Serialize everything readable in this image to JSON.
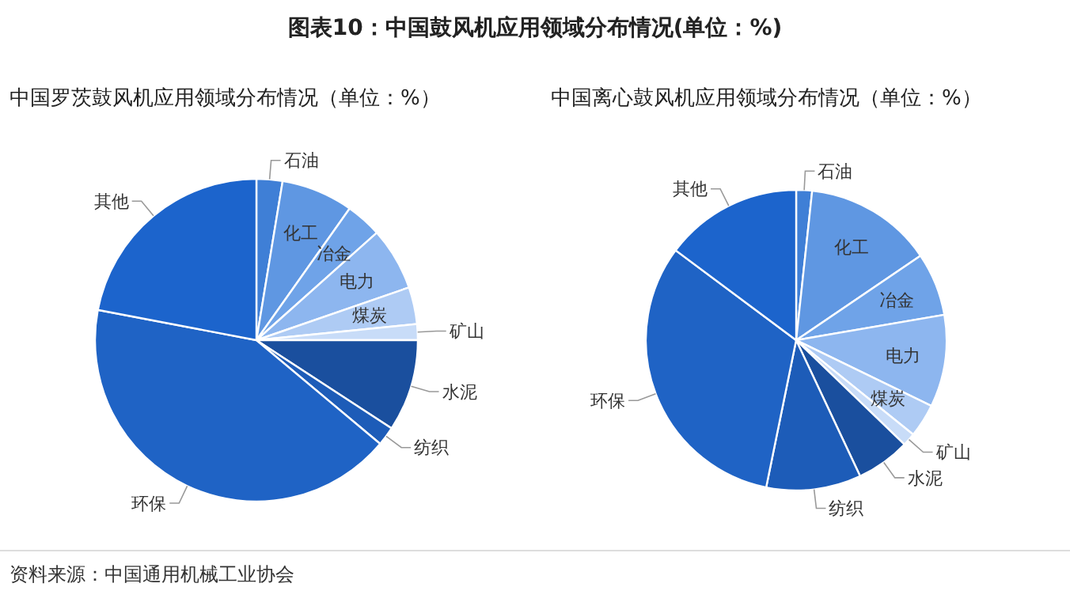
{
  "chart_data": [
    {
      "type": "pie",
      "title": "图表10：中国鼓风机应用领域分布情况(单位：%)",
      "subtitle": "中国罗茨鼓风机应用领域分布情况（单位：%）",
      "categories": [
        "石油",
        "化工",
        "冶金",
        "电力",
        "煤炭",
        "矿山",
        "水泥",
        "纺织",
        "环保",
        "其他"
      ],
      "values": [
        2.6,
        7.2,
        3.6,
        6.3,
        3.7,
        1.6,
        9.2,
        1.9,
        41.9,
        22.0
      ],
      "colors": [
        "#3f7fd6",
        "#5f97e2",
        "#6fa3e8",
        "#8db6ef",
        "#aecbf4",
        "#c8dcf8",
        "#1a4f9e",
        "#1d5cb8",
        "#1f63c5",
        "#1c64cc"
      ]
    },
    {
      "type": "pie",
      "subtitle": "中国离心鼓风机应用领域分布情况（单位：%）",
      "categories": [
        "石油",
        "化工",
        "冶金",
        "电力",
        "煤炭",
        "矿山",
        "水泥",
        "纺织",
        "环保",
        "其他"
      ],
      "values": [
        1.7,
        13.8,
        6.8,
        9.9,
        3.6,
        1.4,
        5.8,
        10.2,
        32.0,
        14.8
      ],
      "colors": [
        "#3f7fd6",
        "#5f97e2",
        "#6fa3e8",
        "#8db6ef",
        "#aecbf4",
        "#c8dcf8",
        "#1a4f9e",
        "#1d5cb8",
        "#1f63c5",
        "#1c64cc"
      ],
      "annotations": [
        "资料来源：中国通用机械工业协会"
      ]
    }
  ]
}
